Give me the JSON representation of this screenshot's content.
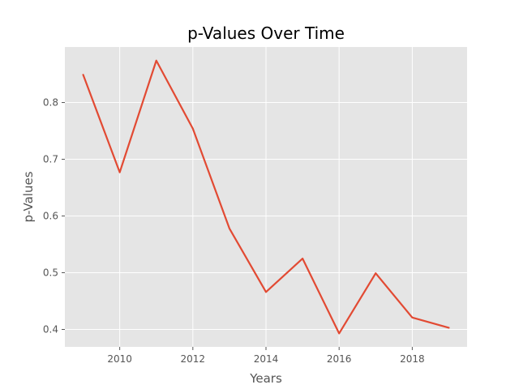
{
  "chart_data": {
    "type": "line",
    "title": "p-Values Over Time",
    "xlabel": "Years",
    "ylabel": "p-Values",
    "x": [
      2009,
      2010,
      2011,
      2012,
      2013,
      2014,
      2015,
      2016,
      2017,
      2018,
      2019
    ],
    "series": [
      {
        "values": [
          0.849,
          0.677,
          0.874,
          0.754,
          0.578,
          0.466,
          0.525,
          0.393,
          0.499,
          0.421,
          0.403
        ],
        "color": "#E24A33"
      }
    ],
    "xticks": [
      "2010",
      "2012",
      "2014",
      "2016",
      "2018"
    ],
    "yticks": [
      "0.4",
      "0.5",
      "0.6",
      "0.7",
      "0.8"
    ],
    "xlim": [
      2008.5,
      2019.5
    ],
    "ylim": [
      0.3693,
      0.8979
    ],
    "grid": true,
    "style": "ggplot",
    "colors": {
      "plot_background": "#E5E5E5",
      "grid": "#FFFFFF",
      "text": "#555555",
      "title": "#000000"
    }
  }
}
